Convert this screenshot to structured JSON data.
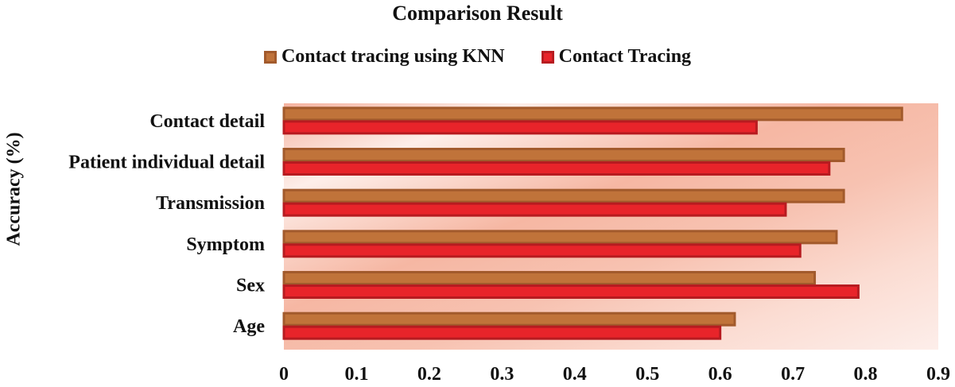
{
  "chart_data": {
    "type": "bar",
    "orientation": "horizontal",
    "title": "Comparison Result",
    "ylabel": "Accuracy (%)",
    "xlabel": "",
    "categories": [
      "Contact detail",
      "Patient individual detail",
      "Transmission",
      "Symptom",
      "Sex",
      "Age"
    ],
    "series": [
      {
        "name": "Contact tracing using KNN",
        "color": "#c0733a",
        "values": [
          0.85,
          0.77,
          0.77,
          0.76,
          0.73,
          0.62
        ]
      },
      {
        "name": "Contact Tracing",
        "color": "#e8242a",
        "values": [
          0.65,
          0.75,
          0.69,
          0.71,
          0.79,
          0.6
        ]
      }
    ],
    "xlim": [
      0,
      0.9
    ],
    "xticks": [
      "0",
      "0.1",
      "0.2",
      "0.3",
      "0.4",
      "0.5",
      "0.6",
      "0.7",
      "0.8",
      "0.9"
    ],
    "legend_position": "top",
    "grid": false
  }
}
